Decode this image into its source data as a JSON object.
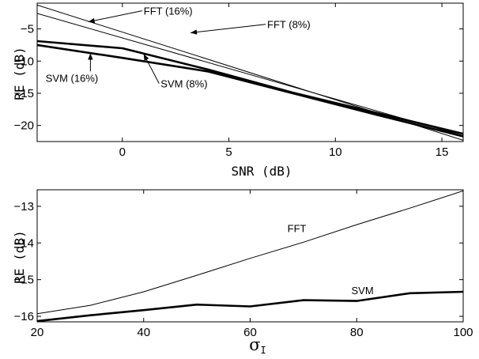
{
  "chart_data": [
    {
      "type": "line",
      "xlabel": "SNR (dB)",
      "ylabel": "RE (dB)",
      "xlim": [
        -4,
        16
      ],
      "ylim": [
        -22.5,
        -1.0
      ],
      "xticks": [
        0,
        5,
        10,
        15
      ],
      "yticks": [
        -5,
        -10,
        -15,
        -20
      ],
      "grid": false,
      "series": [
        {
          "name": "FFT (16%)",
          "width": 1,
          "color": "#000000",
          "x": [
            -4,
            16
          ],
          "y": [
            -1.3,
            -22.3
          ]
        },
        {
          "name": "FFT (8%)",
          "width": 1,
          "color": "#000000",
          "x": [
            -4,
            16
          ],
          "y": [
            -2.6,
            -21.6
          ]
        },
        {
          "name": "SVM (16%)",
          "width": 2.6,
          "color": "#000000",
          "x": [
            -4,
            0,
            4,
            8,
            12,
            16
          ],
          "y": [
            -7.5,
            -9.5,
            -11.6,
            -15.0,
            -18.4,
            -21.7
          ]
        },
        {
          "name": "SVM (8%)",
          "width": 2.6,
          "color": "#000000",
          "x": [
            -4,
            0,
            4,
            8,
            12,
            16
          ],
          "y": [
            -6.9,
            -8.0,
            -11.3,
            -14.9,
            -18.1,
            -21.3
          ]
        }
      ],
      "annotations": [
        {
          "text": "FFT (16%)",
          "tx": 1.0,
          "ty": -2.8,
          "ax": -1.6,
          "ay": -3.9
        },
        {
          "text": "FFT (8%)",
          "tx": 6.8,
          "ty": -4.9,
          "ax": 3.2,
          "ay": -5.6
        },
        {
          "text": "SVM (16%)",
          "tx": -3.6,
          "ty": -13.2,
          "ax": -1.5,
          "ay": -8.8
        },
        {
          "text": "SVM (8%)",
          "tx": 1.8,
          "ty": -14.1,
          "ax": 1.0,
          "ay": -8.9
        }
      ]
    },
    {
      "type": "line",
      "xlabel": "σ",
      "xlabel_sub": "I",
      "ylabel": "RE (dB)",
      "xlim": [
        20,
        100
      ],
      "ylim": [
        -16.15,
        -12.55
      ],
      "xticks": [
        20,
        40,
        60,
        80,
        100
      ],
      "yticks": [
        -13,
        -14,
        -15,
        -16
      ],
      "grid": false,
      "series": [
        {
          "name": "FFT",
          "width": 1,
          "color": "#000000",
          "x": [
            20,
            30,
            40,
            50,
            60,
            70,
            80,
            90,
            100
          ],
          "y": [
            -15.93,
            -15.7,
            -15.33,
            -14.88,
            -14.42,
            -13.98,
            -13.5,
            -13.05,
            -12.58
          ]
        },
        {
          "name": "SVM",
          "width": 2.6,
          "color": "#000000",
          "x": [
            20,
            30,
            40,
            50,
            60,
            70,
            80,
            90,
            100
          ],
          "y": [
            -16.13,
            -15.97,
            -15.83,
            -15.68,
            -15.73,
            -15.56,
            -15.58,
            -15.37,
            -15.33
          ]
        }
      ],
      "annotations": [
        {
          "text": "FFT",
          "tx": 67,
          "ty": -13.7
        },
        {
          "text": "SVM",
          "tx": 79,
          "ty": -15.4
        }
      ]
    }
  ]
}
